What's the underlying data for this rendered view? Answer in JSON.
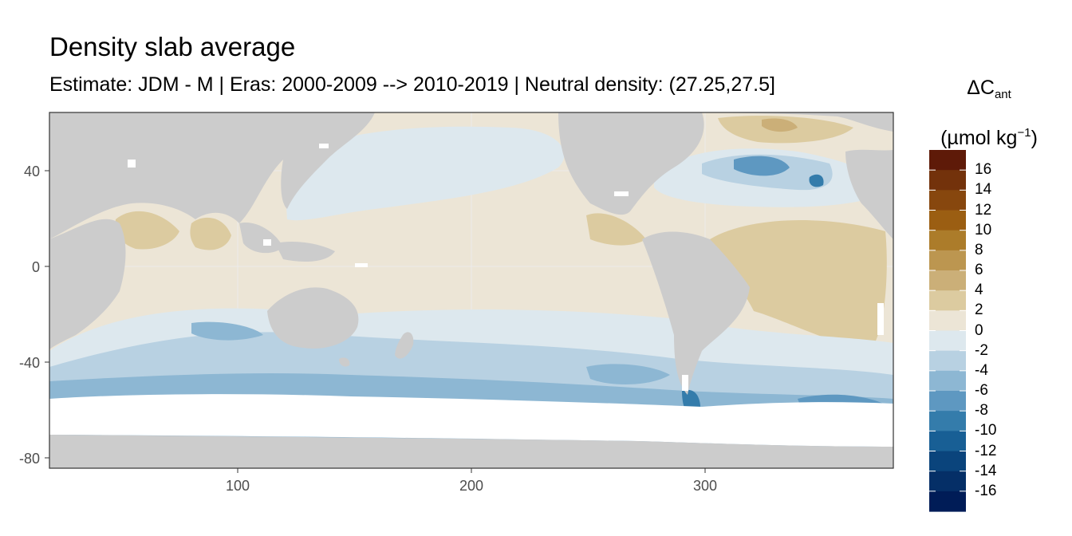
{
  "title": "Density slab average",
  "subtitle": "Estimate: JDM - M | Eras: 2000-2009 --> 2010-2019 | Neutral density: (27.25,27.5]",
  "legend": {
    "var_main": "ΔC",
    "var_sub": "ant",
    "unit_main": "(µmol kg",
    "unit_sup": "−1",
    "unit_end": ")",
    "breaks": [
      "16",
      "14",
      "12",
      "10",
      "8",
      "6",
      "4",
      "2",
      "0",
      "-2",
      "-4",
      "-6",
      "-8",
      "-10",
      "-12",
      "-14",
      "-16"
    ],
    "colors": [
      "#5e1a08",
      "#73320b",
      "#87470e",
      "#9b5e12",
      "#ac7c2a",
      "#bc9650",
      "#cbaf78",
      "#dccba0",
      "#ece5d6",
      "#dde8ee",
      "#b8d1e2",
      "#8db7d3",
      "#5e98c1",
      "#347cab",
      "#185f95",
      "#0a447c",
      "#052f67",
      "#001c57"
    ]
  },
  "axes": {
    "x_ticks": [
      "100",
      "200",
      "300"
    ],
    "y_ticks": [
      "40",
      "0",
      "-40",
      "-80"
    ],
    "x_range": [
      20,
      382
    ],
    "y_range": [
      -84,
      64
    ]
  },
  "colors": {
    "land": "#cccccc",
    "ice": "#ffffff",
    "panel_border": "#333333",
    "grid": "#ebebeb"
  }
}
